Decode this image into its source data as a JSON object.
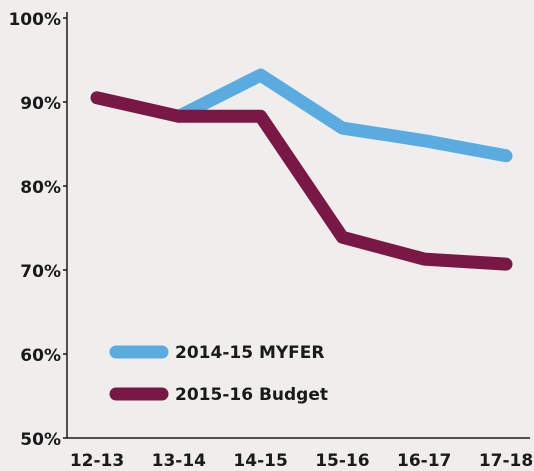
{
  "chart_data": {
    "type": "line",
    "categories": [
      "12-13",
      "13-14",
      "14-15",
      "15-16",
      "16-17",
      "17-18"
    ],
    "series": [
      {
        "name": "2014-15 MYFER",
        "color": "#5aace0",
        "values": [
          null,
          88.3,
          93.2,
          86.9,
          85.4,
          83.6
        ]
      },
      {
        "name": "2015-16 Budget",
        "color": "#7a1845",
        "values": [
          90.5,
          88.3,
          88.3,
          73.9,
          71.3,
          70.7
        ]
      }
    ],
    "ylim": [
      50,
      100
    ],
    "yticks": [
      {
        "value": 50,
        "label": "50%"
      },
      {
        "value": 60,
        "label": "60%"
      },
      {
        "value": 70,
        "label": "70%"
      },
      {
        "value": 80,
        "label": "80%"
      },
      {
        "value": 90,
        "label": "90%"
      },
      {
        "value": 100,
        "label": "100%"
      }
    ],
    "legend": "lower left"
  }
}
